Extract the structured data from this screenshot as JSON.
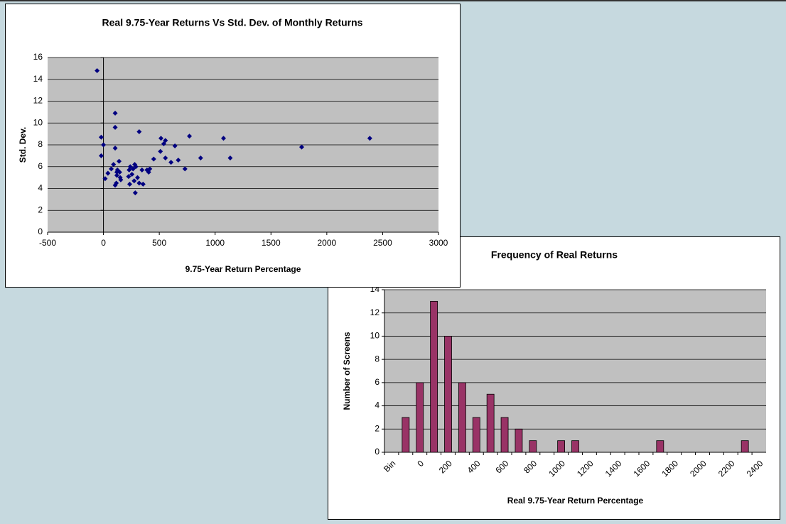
{
  "chart_data": [
    {
      "type": "scatter",
      "title": "Real 9.75-Year Returns Vs Std. Dev. of Monthly Returns",
      "xlabel": "9.75-Year Return Percentage",
      "ylabel": "Std. Dev.",
      "color": "#000080",
      "xlim": [
        -500,
        3000
      ],
      "xticks": [
        -500,
        0,
        500,
        1000,
        1500,
        2000,
        2500,
        3000
      ],
      "ylim": [
        0,
        16
      ],
      "yticks": [
        0,
        2,
        4,
        6,
        8,
        10,
        12,
        14,
        16
      ],
      "grid": true,
      "x": [
        -57,
        -20,
        -20,
        0,
        15,
        40,
        70,
        90,
        105,
        105,
        105,
        105,
        115,
        120,
        125,
        140,
        150,
        145,
        155,
        120,
        225,
        230,
        235,
        240,
        255,
        265,
        275,
        280,
        285,
        290,
        305,
        320,
        320,
        345,
        355,
        390,
        405,
        415,
        450,
        510,
        515,
        540,
        555,
        555,
        605,
        640,
        670,
        730,
        770,
        870,
        1075,
        1135,
        1775,
        2385
      ],
      "values": [
        14.8,
        8.7,
        7.0,
        8.0,
        4.9,
        5.4,
        5.8,
        6.2,
        10.9,
        9.6,
        7.7,
        4.3,
        4.5,
        5.2,
        5.7,
        6.5,
        5.0,
        5.5,
        4.8,
        5.5,
        5.1,
        5.7,
        4.4,
        6.0,
        5.3,
        5.8,
        4.7,
        6.2,
        3.6,
        6.0,
        5.0,
        4.5,
        9.2,
        5.7,
        4.4,
        5.7,
        5.5,
        5.8,
        6.7,
        7.4,
        8.6,
        8.1,
        8.4,
        6.8,
        6.4,
        7.9,
        6.6,
        5.8,
        8.8,
        6.8,
        8.6,
        6.8,
        7.8,
        8.6
      ]
    },
    {
      "type": "bar",
      "title": "Frequency of Real Returns",
      "xlabel": "Real 9.75-Year Return Percentage",
      "ylabel": "Number of Screens",
      "color": "#993366",
      "ylim": [
        0,
        14
      ],
      "yticks": [
        0,
        2,
        4,
        6,
        8,
        10,
        12,
        14
      ],
      "grid": true,
      "categories": [
        "Bin",
        null,
        "0",
        null,
        "200",
        null,
        "400",
        null,
        "600",
        null,
        "800",
        null,
        "1000",
        null,
        "1200",
        null,
        "1400",
        null,
        "1600",
        null,
        "1800",
        null,
        "2000",
        null,
        "2200",
        null,
        "2400"
      ],
      "values": [
        0,
        3,
        6,
        13,
        10,
        6,
        3,
        5,
        3,
        2,
        1,
        0,
        1,
        1,
        0,
        0,
        0,
        0,
        0,
        1,
        0,
        0,
        0,
        0,
        0,
        1,
        0
      ]
    }
  ]
}
